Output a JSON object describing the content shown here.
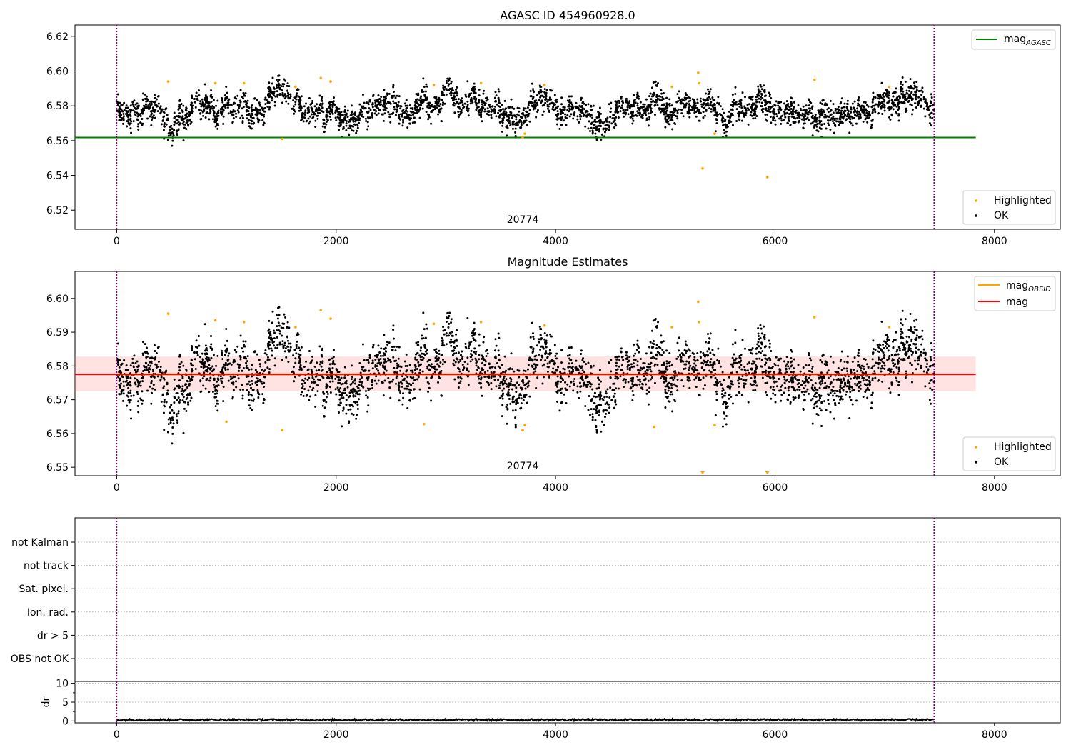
{
  "colors": {
    "ok": "#000000",
    "highlighted": "#ffa500",
    "agasc_line": "#008000",
    "obsid_line": "#ffa500",
    "mag_line": "#ff0000",
    "band_fill": "#ff8080",
    "obs_boundary": "#800080",
    "grid": "#b0b0b0"
  },
  "chart_data": [
    {
      "type": "scatter",
      "title": "AGASC ID 454960928.0",
      "xlabel": "",
      "ylabel": "",
      "xlim": [
        -380,
        8600
      ],
      "ylim": [
        6.509,
        6.6265
      ],
      "xticks": [
        "0",
        "2000",
        "4000",
        "6000",
        "8000"
      ],
      "yticks": [
        "6.52",
        "6.54",
        "6.56",
        "6.58",
        "6.60",
        "6.62"
      ],
      "obsid_label": "20774",
      "obsid_label_x": 3700,
      "obs_boundaries": [
        0,
        7450
      ],
      "hlines": [
        {
          "name": "mag",
          "subscript": "AGASC",
          "y": 6.5618,
          "xrange": [
            -380,
            7830
          ]
        }
      ],
      "series": [
        {
          "name": "Highlighted",
          "note": "scattered outliers",
          "points": [
            [
              470,
              6.594
            ],
            [
              900,
              6.593
            ],
            [
              1160,
              6.593
            ],
            [
              1510,
              6.561
            ],
            [
              1630,
              6.591
            ],
            [
              1860,
              6.596
            ],
            [
              1950,
              6.594
            ],
            [
              2890,
              6.592
            ],
            [
              3320,
              6.593
            ],
            [
              3700,
              6.562
            ],
            [
              3720,
              6.564
            ],
            [
              3900,
              6.592
            ],
            [
              5060,
              6.591
            ],
            [
              5300,
              6.599
            ],
            [
              5310,
              6.593
            ],
            [
              5340,
              6.544
            ],
            [
              5450,
              6.564
            ],
            [
              5930,
              6.539
            ],
            [
              6360,
              6.595
            ],
            [
              7040,
              6.591
            ]
          ]
        },
        {
          "name": "OK",
          "n_points": 7450,
          "x_range": [
            0,
            7450
          ],
          "mean": 6.5775,
          "spread": 0.005
        }
      ],
      "legend": [
        {
          "label": "mag",
          "subscript": "AGASC",
          "position": "top-right"
        },
        {
          "label": "Highlighted",
          "position": "bottom-right"
        },
        {
          "label": "OK",
          "position": "bottom-right"
        }
      ]
    },
    {
      "type": "scatter",
      "title": "Magnitude Estimates",
      "xlabel": "",
      "ylabel": "",
      "xlim": [
        -380,
        8600
      ],
      "ylim": [
        6.5475,
        6.608
      ],
      "xticks": [
        "0",
        "2000",
        "4000",
        "6000",
        "8000"
      ],
      "yticks": [
        "6.55",
        "6.56",
        "6.57",
        "6.58",
        "6.59",
        "6.60"
      ],
      "obsid_label": "20774",
      "obsid_label_x": 3700,
      "obs_boundaries": [
        0,
        7450
      ],
      "hlines": [
        {
          "name": "mag",
          "subscript": "OBSID",
          "y": 6.5775,
          "xrange": [
            0,
            7450
          ]
        },
        {
          "name": "mag",
          "y": 6.5775,
          "xrange": [
            -380,
            7830
          ]
        }
      ],
      "band": {
        "y0": 6.5725,
        "y1": 6.5828,
        "xrange": [
          -380,
          7830
        ]
      },
      "series": [
        {
          "name": "Highlighted",
          "note": "outliers; two triangles at lower axis edge",
          "points": [
            [
              470,
              6.5955
            ],
            [
              900,
              6.5935
            ],
            [
              1000,
              6.5635
            ],
            [
              1160,
              6.593
            ],
            [
              1510,
              6.561
            ],
            [
              1630,
              6.5915
            ],
            [
              1860,
              6.5965
            ],
            [
              1950,
              6.594
            ],
            [
              2800,
              6.5628
            ],
            [
              2890,
              6.5925
            ],
            [
              3320,
              6.593
            ],
            [
              3700,
              6.561
            ],
            [
              3720,
              6.5625
            ],
            [
              3900,
              6.592
            ],
            [
              4900,
              6.562
            ],
            [
              5060,
              6.5915
            ],
            [
              5300,
              6.599
            ],
            [
              5310,
              6.593
            ],
            [
              5340,
              6.548
            ],
            [
              5450,
              6.5625
            ],
            [
              5930,
              6.548
            ],
            [
              6360,
              6.5945
            ],
            [
              7040,
              6.5915
            ]
          ]
        },
        {
          "name": "OK",
          "n_points": 7450,
          "x_range": [
            0,
            7450
          ],
          "mean": 6.5775,
          "spread": 0.005
        }
      ],
      "legend": [
        {
          "label": "mag",
          "subscript": "OBSID",
          "position": "top-right"
        },
        {
          "label": "mag",
          "position": "top-right"
        },
        {
          "label": "Highlighted",
          "position": "bottom-right"
        },
        {
          "label": "OK",
          "position": "bottom-right"
        }
      ]
    },
    {
      "type": "scatter",
      "title": "",
      "xlabel": "",
      "ylabel": "",
      "xlim": [
        -380,
        8600
      ],
      "obs_boundaries": [
        0,
        7450
      ],
      "categories": [
        "not Kalman",
        "not track",
        "Sat. pixel.",
        "Ion. rad.",
        "dr > 5",
        "OBS not OK"
      ],
      "series": []
    },
    {
      "type": "line",
      "title": "",
      "xlabel": "",
      "ylabel": "dr",
      "xlim": [
        -380,
        8600
      ],
      "ylim": [
        -0.5,
        10.5
      ],
      "xticks": [
        "0",
        "2000",
        "4000",
        "6000",
        "8000"
      ],
      "yticks": [
        "0",
        "5",
        "10"
      ],
      "obs_boundaries": [
        0,
        7450
      ],
      "series": [
        {
          "name": "dr",
          "x_range": [
            0,
            7450
          ],
          "mean": 0.3
        }
      ]
    }
  ]
}
